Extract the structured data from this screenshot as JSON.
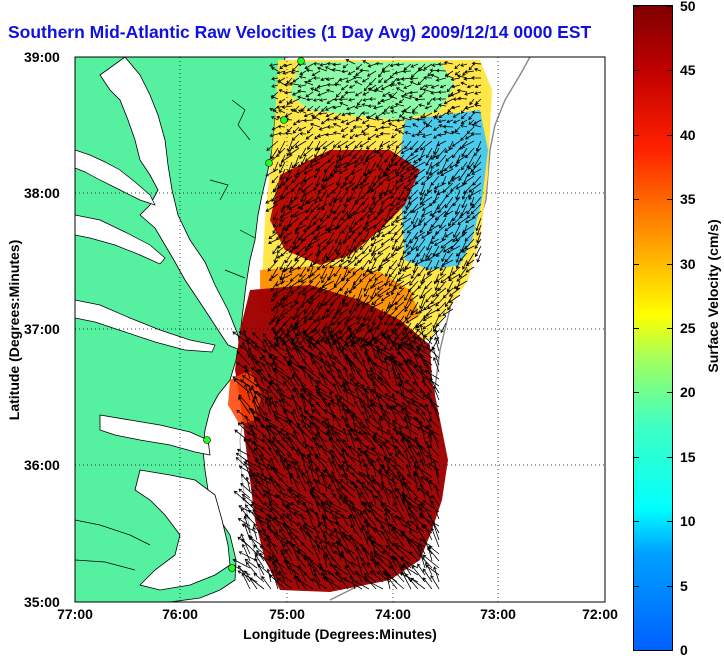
{
  "title": "Southern Mid-Atlantic Raw Velocities (1 Day Avg) 2009/12/14 0000 EST",
  "axes": {
    "xlabel": "Longitude (Degrees:Minutes)",
    "ylabel": "Latitude (Degrees:Minutes)",
    "xticks": [
      "77:00",
      "76:00",
      "75:00",
      "74:00",
      "73:00",
      "72:00"
    ],
    "yticks": [
      "39:00",
      "38:00",
      "37:00",
      "36:00",
      "35:00"
    ]
  },
  "colorbar": {
    "label": "Surface Velocity (cm/s)",
    "ticks": [
      "50",
      "45",
      "40",
      "35",
      "30",
      "25",
      "20",
      "15",
      "10",
      "5",
      "0"
    ],
    "range": [
      0,
      50
    ]
  },
  "colors": {
    "land": "#55f0a0",
    "water": "#ffffff",
    "title": "#1010e0",
    "station": "#20ff20"
  }
}
